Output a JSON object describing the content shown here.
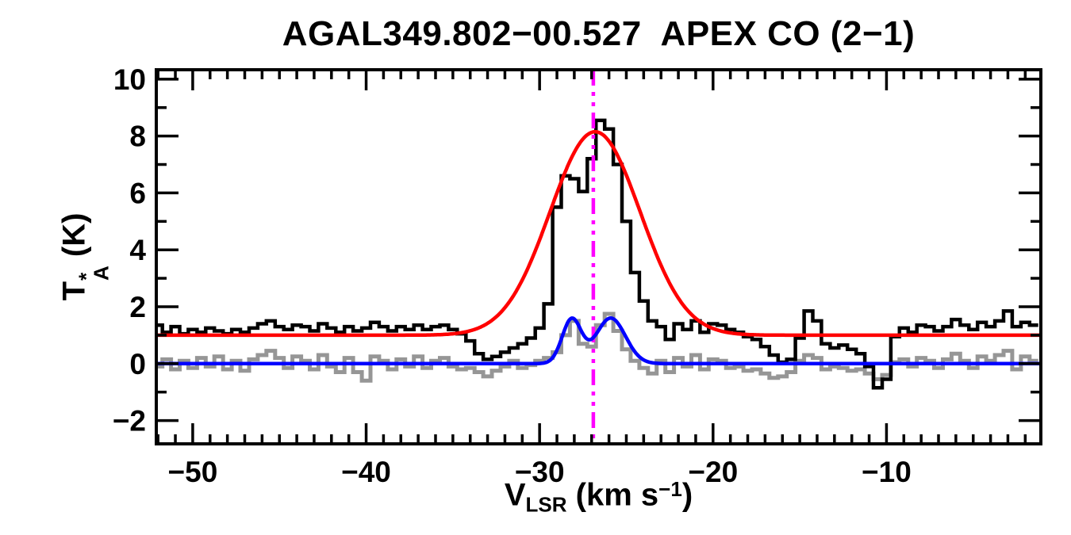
{
  "title": "AGAL349.802−00.527  APEX CO (2−1)",
  "labels": {
    "ylabel_parts": {
      "t": "T",
      "sup": "*",
      "sub": "A",
      "rest": " (K)"
    },
    "xlabel_parts": {
      "v": "V",
      "sub": "LSR",
      "rest1": " (km s",
      "sup": "−1",
      "rest2": ")"
    }
  },
  "colors": {
    "spectrum": "#000000",
    "residual": "#969696",
    "gaussian_fit": "#ff0000",
    "residual_fit": "#0000ff",
    "velocity_marker": "#ff00ff",
    "frame": "#000000",
    "background": "#ffffff"
  },
  "chart_data": {
    "type": "line",
    "title": "AGAL349.802−00.527  APEX CO (2−1)",
    "xlabel": "V_LSR (km s^−1)",
    "ylabel": "T_A^* (K)",
    "xlim": [
      -52.1,
      -1.1
    ],
    "ylim": [
      -2.82,
      10.33
    ],
    "grid": false,
    "legend": "none",
    "x_major_ticks": [
      -50,
      -40,
      -30,
      -20,
      -10
    ],
    "x_major_tick_labels": [
      "−50",
      "−40",
      "−30",
      "−20",
      "−10"
    ],
    "x_minor_step": 1,
    "y_major_ticks": [
      -2,
      0,
      2,
      4,
      6,
      8,
      10
    ],
    "y_major_tick_labels": [
      "−2",
      "0",
      "2",
      "4",
      "6",
      "8",
      "10"
    ],
    "y_minor_step": 1,
    "velocity_marker": {
      "x": -26.9,
      "style": "dash-dot-dot",
      "color": "#ff00ff"
    },
    "bin": {
      "x_start": -52.0,
      "x_step": 0.5,
      "bin_width": 0.5
    },
    "series": [
      {
        "name": "observed-spectrum",
        "style": "histogram",
        "color": "#000000",
        "values": [
          1.35,
          1.1,
          1.3,
          1.05,
          1.2,
          1.1,
          1.25,
          1.15,
          1.05,
          1.2,
          1.1,
          1.25,
          1.4,
          1.5,
          1.3,
          1.2,
          1.35,
          1.3,
          1.15,
          1.4,
          1.25,
          1.1,
          1.3,
          1.15,
          1.25,
          1.45,
          1.3,
          1.15,
          1.3,
          1.2,
          1.35,
          1.2,
          1.3,
          1.35,
          1.2,
          1.05,
          0.8,
          0.35,
          0.15,
          0.25,
          0.4,
          0.55,
          0.7,
          0.9,
          1.25,
          2.1,
          5.5,
          6.6,
          6.5,
          6.05,
          7.2,
          8.55,
          8.25,
          7.0,
          5.0,
          3.2,
          2.2,
          1.5,
          1.3,
          0.85,
          1.4,
          1.2,
          1.5,
          1.1,
          1.4,
          1.35,
          1.2,
          1.1,
          0.95,
          0.85,
          0.6,
          0.3,
          0.05,
          0.15,
          0.9,
          1.85,
          1.5,
          0.7,
          0.55,
          0.65,
          0.5,
          0.35,
          -0.1,
          -0.85,
          -0.55,
          0.95,
          1.25,
          1.1,
          1.35,
          1.3,
          1.15,
          1.3,
          1.55,
          1.35,
          1.2,
          1.45,
          1.3,
          1.5,
          1.85,
          1.3,
          1.45,
          1.35
        ]
      },
      {
        "name": "residual-spectrum",
        "style": "histogram",
        "color": "#969696",
        "values": [
          -0.1,
          0.15,
          -0.2,
          0.1,
          -0.15,
          0.2,
          -0.1,
          0.25,
          -0.2,
          0.1,
          -0.25,
          0.15,
          0.3,
          0.45,
          0.2,
          -0.15,
          0.25,
          0.1,
          -0.2,
          0.3,
          -0.1,
          -0.3,
          0.2,
          -0.3,
          -0.6,
          0.25,
          0.1,
          -0.2,
          0.15,
          -0.1,
          0.25,
          -0.15,
          0.1,
          0.2,
          -0.1,
          -0.2,
          -0.15,
          -0.3,
          -0.45,
          -0.25,
          -0.1,
          0.1,
          -0.15,
          -0.05,
          0.1,
          0.2,
          0.4,
          1.0,
          1.5,
          0.7,
          0.6,
          1.35,
          1.75,
          1.15,
          0.5,
          0.1,
          -0.15,
          -0.35,
          0.1,
          -0.3,
          0.2,
          -0.1,
          0.3,
          -0.2,
          0.15,
          0.1,
          -0.15,
          -0.1,
          -0.25,
          -0.2,
          -0.35,
          -0.5,
          -0.45,
          -0.3,
          0.1,
          0.3,
          0.2,
          -0.2,
          -0.1,
          -0.15,
          -0.25,
          -0.2,
          -0.35,
          -0.55,
          -0.4,
          0.05,
          0.15,
          -0.1,
          0.2,
          0.1,
          -0.15,
          0.15,
          0.35,
          0.1,
          -0.15,
          0.25,
          0.1,
          0.3,
          0.45,
          -0.2,
          0.25,
          0.1
        ]
      },
      {
        "name": "gaussian-fit",
        "style": "model",
        "color": "#ff0000",
        "baseline": 1.0,
        "components": [
          {
            "amp": 7.15,
            "center": -26.8,
            "sigma": 2.6
          }
        ]
      },
      {
        "name": "residual-fit",
        "style": "model",
        "color": "#0000ff",
        "baseline": 0.0,
        "components": [
          {
            "amp": 1.55,
            "center": -28.15,
            "sigma": 0.55
          },
          {
            "amp": 1.6,
            "center": -25.9,
            "sigma": 0.85
          }
        ]
      }
    ]
  }
}
